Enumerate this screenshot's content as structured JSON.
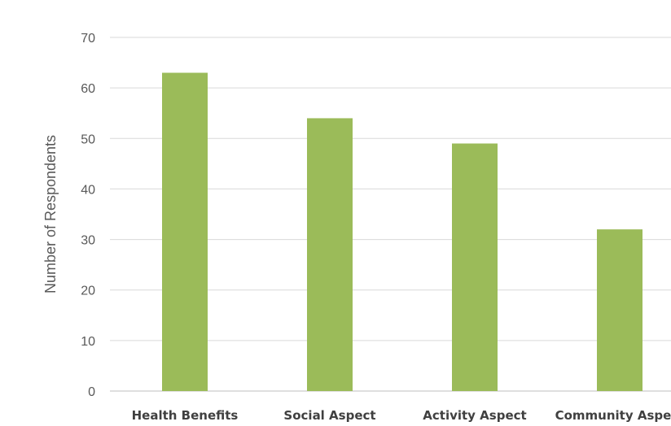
{
  "chart_data": {
    "type": "bar",
    "title": "",
    "xlabel": "",
    "ylabel": "Number of Respondents",
    "categories": [
      "Health Benefits",
      "Social Aspect",
      "Activity Aspect",
      "Community Aspect"
    ],
    "values": [
      63,
      54,
      49,
      32
    ],
    "ylim": [
      0,
      70
    ],
    "yticks": [
      0,
      10,
      20,
      30,
      40,
      50,
      60,
      70
    ],
    "grid": true,
    "legend": "none",
    "bar_color": "#9bbb59"
  }
}
